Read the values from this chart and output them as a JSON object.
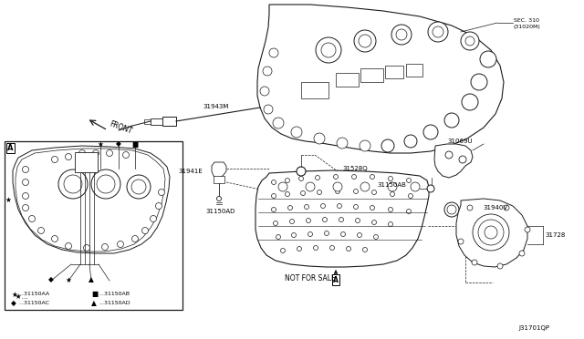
{
  "background_color": "#ffffff",
  "line_color": "#1a1a1a",
  "fig_width": 6.4,
  "fig_height": 3.72,
  "dpi": 100,
  "diagram_code": "J31701QP",
  "labels": {
    "sec310": "SEC. 310\n(31020M)",
    "l_31943M": "31943M",
    "l_31941E": "31941E",
    "l_31150AD": "31150AD",
    "l_31528Q": "31528Q",
    "l_31069U": "31069U",
    "l_31150AB": "31150AB",
    "l_31940V": "31940V",
    "l_31728": "31728",
    "l_NFS": "NOT FOR SALE",
    "l_FRONT": "FRONT",
    "l_A": "A"
  }
}
